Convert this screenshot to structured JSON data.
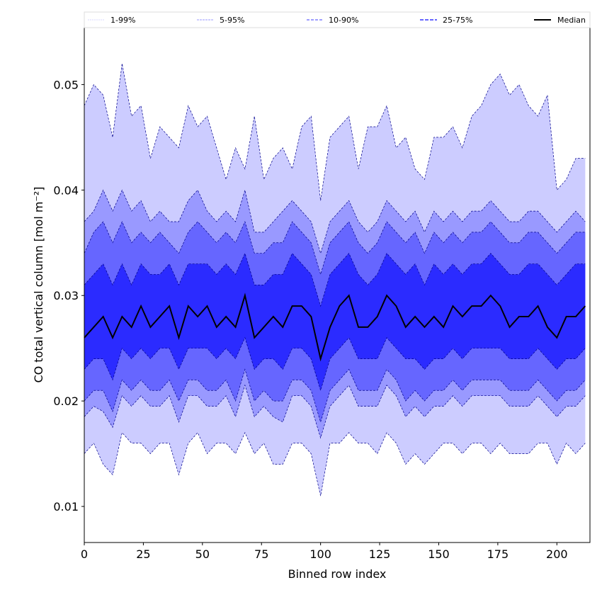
{
  "chart_data": {
    "type": "area",
    "title": "",
    "xlabel": "Binned row index",
    "ylabel": "CO total vertical column [mol m⁻²]",
    "xlim": [
      0,
      214
    ],
    "ylim": [
      0.00658,
      0.0554
    ],
    "xticks": [
      0,
      25,
      50,
      75,
      100,
      125,
      150,
      175,
      200
    ],
    "yticks": [
      0.01,
      0.02,
      0.03,
      0.04,
      0.05
    ],
    "ytick_labels": [
      "0.01",
      "0.02",
      "0.03",
      "0.04",
      "0.05"
    ],
    "grid": false,
    "legend_placement": "top, above plot, horizontal",
    "legend": [
      {
        "label": "1-99%",
        "color": "#ccccff"
      },
      {
        "label": "5-95%",
        "color": "#9999ff"
      },
      {
        "label": "10-90%",
        "color": "#6666ff"
      },
      {
        "label": "25-75%",
        "color": "#3333ff"
      },
      {
        "label": "Median",
        "color": "#000000"
      }
    ],
    "x": [
      0,
      4,
      8,
      12,
      16,
      20,
      24,
      28,
      32,
      36,
      40,
      44,
      48,
      52,
      56,
      60,
      64,
      68,
      72,
      76,
      80,
      84,
      88,
      92,
      96,
      100,
      104,
      108,
      112,
      116,
      120,
      124,
      128,
      132,
      136,
      140,
      144,
      148,
      152,
      156,
      160,
      164,
      168,
      172,
      176,
      180,
      184,
      188,
      192,
      196,
      200,
      204,
      208,
      212
    ],
    "series": {
      "p99": [
        0.048,
        0.05,
        0.049,
        0.045,
        0.052,
        0.047,
        0.048,
        0.043,
        0.046,
        0.045,
        0.044,
        0.048,
        0.046,
        0.047,
        0.044,
        0.041,
        0.044,
        0.042,
        0.047,
        0.041,
        0.043,
        0.044,
        0.042,
        0.046,
        0.047,
        0.039,
        0.045,
        0.046,
        0.047,
        0.042,
        0.046,
        0.046,
        0.048,
        0.044,
        0.045,
        0.042,
        0.041,
        0.045,
        0.045,
        0.046,
        0.044,
        0.047,
        0.048,
        0.05,
        0.051,
        0.049,
        0.05,
        0.048,
        0.047,
        0.049,
        0.04,
        0.041,
        0.043,
        0.043
      ],
      "p95": [
        0.037,
        0.038,
        0.04,
        0.038,
        0.04,
        0.038,
        0.039,
        0.037,
        0.038,
        0.037,
        0.037,
        0.039,
        0.04,
        0.038,
        0.037,
        0.038,
        0.037,
        0.04,
        0.036,
        0.036,
        0.037,
        0.038,
        0.039,
        0.038,
        0.037,
        0.034,
        0.037,
        0.038,
        0.039,
        0.037,
        0.036,
        0.037,
        0.039,
        0.038,
        0.037,
        0.038,
        0.036,
        0.038,
        0.037,
        0.038,
        0.037,
        0.038,
        0.038,
        0.039,
        0.038,
        0.037,
        0.037,
        0.038,
        0.038,
        0.037,
        0.036,
        0.037,
        0.038,
        0.037
      ],
      "p90": [
        0.034,
        0.036,
        0.037,
        0.035,
        0.037,
        0.035,
        0.036,
        0.035,
        0.036,
        0.035,
        0.034,
        0.036,
        0.037,
        0.036,
        0.035,
        0.036,
        0.035,
        0.037,
        0.034,
        0.034,
        0.035,
        0.035,
        0.037,
        0.036,
        0.035,
        0.032,
        0.035,
        0.036,
        0.037,
        0.035,
        0.034,
        0.035,
        0.037,
        0.036,
        0.035,
        0.036,
        0.034,
        0.036,
        0.035,
        0.036,
        0.035,
        0.036,
        0.036,
        0.037,
        0.036,
        0.035,
        0.035,
        0.036,
        0.036,
        0.035,
        0.034,
        0.035,
        0.036,
        0.036
      ],
      "p75": [
        0.031,
        0.032,
        0.033,
        0.031,
        0.033,
        0.031,
        0.033,
        0.032,
        0.032,
        0.033,
        0.031,
        0.033,
        0.033,
        0.033,
        0.032,
        0.033,
        0.032,
        0.034,
        0.031,
        0.031,
        0.032,
        0.032,
        0.034,
        0.033,
        0.032,
        0.029,
        0.032,
        0.033,
        0.034,
        0.032,
        0.031,
        0.032,
        0.034,
        0.033,
        0.032,
        0.033,
        0.031,
        0.033,
        0.032,
        0.033,
        0.032,
        0.033,
        0.033,
        0.034,
        0.033,
        0.032,
        0.032,
        0.033,
        0.033,
        0.032,
        0.031,
        0.032,
        0.033,
        0.033
      ],
      "median": [
        0.026,
        0.027,
        0.028,
        0.026,
        0.028,
        0.027,
        0.029,
        0.027,
        0.028,
        0.029,
        0.026,
        0.029,
        0.028,
        0.029,
        0.027,
        0.028,
        0.027,
        0.03,
        0.026,
        0.027,
        0.028,
        0.027,
        0.029,
        0.029,
        0.028,
        0.024,
        0.027,
        0.029,
        0.03,
        0.027,
        0.027,
        0.028,
        0.03,
        0.029,
        0.027,
        0.028,
        0.027,
        0.028,
        0.027,
        0.029,
        0.028,
        0.029,
        0.029,
        0.03,
        0.029,
        0.027,
        0.028,
        0.028,
        0.029,
        0.027,
        0.026,
        0.028,
        0.028,
        0.029
      ],
      "p25": [
        0.023,
        0.024,
        0.024,
        0.022,
        0.025,
        0.024,
        0.025,
        0.024,
        0.025,
        0.025,
        0.023,
        0.025,
        0.025,
        0.025,
        0.024,
        0.025,
        0.024,
        0.026,
        0.023,
        0.024,
        0.024,
        0.023,
        0.025,
        0.025,
        0.024,
        0.021,
        0.024,
        0.025,
        0.026,
        0.024,
        0.024,
        0.024,
        0.026,
        0.025,
        0.024,
        0.024,
        0.023,
        0.024,
        0.024,
        0.025,
        0.024,
        0.025,
        0.025,
        0.025,
        0.025,
        0.024,
        0.024,
        0.024,
        0.025,
        0.024,
        0.023,
        0.024,
        0.024,
        0.025
      ],
      "p10": [
        0.02,
        0.021,
        0.021,
        0.019,
        0.022,
        0.021,
        0.022,
        0.021,
        0.021,
        0.022,
        0.02,
        0.022,
        0.022,
        0.021,
        0.021,
        0.022,
        0.02,
        0.023,
        0.02,
        0.021,
        0.02,
        0.02,
        0.022,
        0.022,
        0.021,
        0.018,
        0.021,
        0.022,
        0.023,
        0.021,
        0.021,
        0.021,
        0.023,
        0.022,
        0.02,
        0.021,
        0.02,
        0.021,
        0.021,
        0.022,
        0.021,
        0.022,
        0.022,
        0.022,
        0.022,
        0.021,
        0.021,
        0.021,
        0.022,
        0.021,
        0.02,
        0.021,
        0.021,
        0.022
      ],
      "p5": [
        0.0185,
        0.0195,
        0.019,
        0.0175,
        0.0205,
        0.0195,
        0.0205,
        0.0195,
        0.0195,
        0.0205,
        0.018,
        0.0205,
        0.0205,
        0.0195,
        0.0195,
        0.0205,
        0.0185,
        0.0215,
        0.0185,
        0.0195,
        0.0185,
        0.018,
        0.0205,
        0.0205,
        0.0195,
        0.0165,
        0.0195,
        0.0205,
        0.0215,
        0.0195,
        0.0195,
        0.0195,
        0.0215,
        0.0205,
        0.0185,
        0.0195,
        0.0185,
        0.0195,
        0.0195,
        0.0205,
        0.0195,
        0.0205,
        0.0205,
        0.0205,
        0.0205,
        0.0195,
        0.0195,
        0.0195,
        0.0205,
        0.0195,
        0.0185,
        0.0195,
        0.0195,
        0.0205
      ],
      "p1": [
        0.015,
        0.016,
        0.014,
        0.013,
        0.017,
        0.016,
        0.016,
        0.015,
        0.016,
        0.016,
        0.013,
        0.016,
        0.017,
        0.015,
        0.016,
        0.016,
        0.015,
        0.017,
        0.015,
        0.016,
        0.014,
        0.014,
        0.016,
        0.016,
        0.015,
        0.011,
        0.016,
        0.016,
        0.017,
        0.016,
        0.016,
        0.015,
        0.017,
        0.016,
        0.014,
        0.015,
        0.014,
        0.015,
        0.016,
        0.016,
        0.015,
        0.016,
        0.016,
        0.015,
        0.016,
        0.015,
        0.015,
        0.015,
        0.016,
        0.016,
        0.014,
        0.016,
        0.015,
        0.016
      ]
    }
  }
}
